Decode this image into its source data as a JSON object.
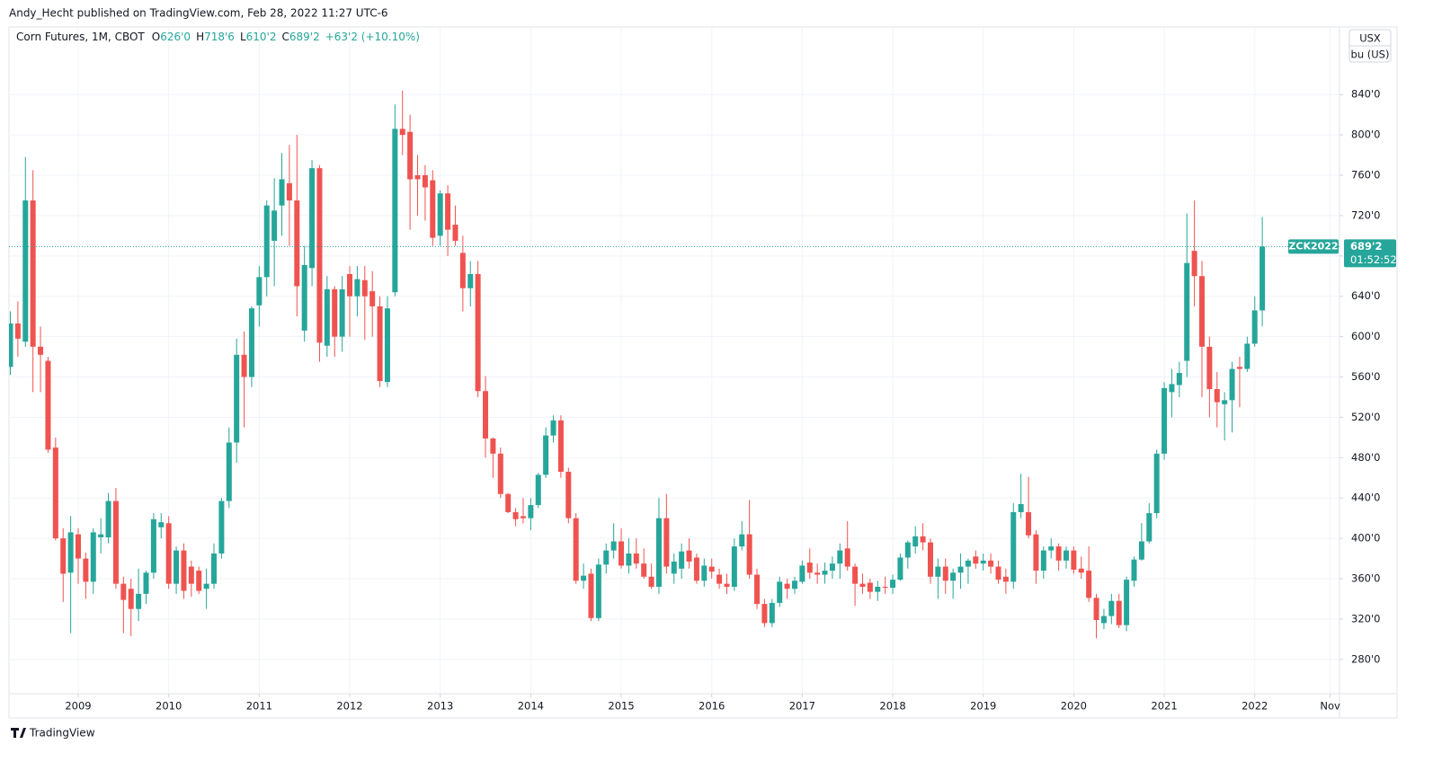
{
  "header": "Andy_Hecht published on TradingView.com, Feb 28, 2022 11:27 UTC-6",
  "footer": "TradingView",
  "chart_data": {
    "type": "candlestick",
    "title": "Corn Futures, 1M, CBOT",
    "ohlc_legend": [
      {
        "label": "O",
        "value": "626'0"
      },
      {
        "label": "H",
        "value": "718'6"
      },
      {
        "label": "L",
        "value": "610'2"
      },
      {
        "label": "C",
        "value": "689'2"
      }
    ],
    "change": "+63'2 (+10.10%)",
    "currency": "USX",
    "unit": "bu (US)",
    "last_price": {
      "value": 689.25,
      "label": "689'2",
      "symbol": "ZCK2022",
      "countdown": "01:52:52"
    },
    "up_color": "#26a69a",
    "down_color": "#ef5350",
    "grid": true,
    "xlim": [
      "2008-04",
      "2022-12"
    ],
    "ylim": [
      246,
      907
    ],
    "xticks": [
      {
        "value": "2009-01",
        "label": "2009"
      },
      {
        "value": "2010-01",
        "label": "2010"
      },
      {
        "value": "2011-01",
        "label": "2011"
      },
      {
        "value": "2012-01",
        "label": "2012"
      },
      {
        "value": "2013-01",
        "label": "2013"
      },
      {
        "value": "2014-01",
        "label": "2014"
      },
      {
        "value": "2015-01",
        "label": "2015"
      },
      {
        "value": "2016-01",
        "label": "2016"
      },
      {
        "value": "2017-01",
        "label": "2017"
      },
      {
        "value": "2018-01",
        "label": "2018"
      },
      {
        "value": "2019-01",
        "label": "2019"
      },
      {
        "value": "2020-01",
        "label": "2020"
      },
      {
        "value": "2021-01",
        "label": "2021"
      },
      {
        "value": "2022-01",
        "label": "2022"
      },
      {
        "value": "2022-11",
        "label": "Nov"
      }
    ],
    "yticks": [
      {
        "value": 280,
        "label": "280'0"
      },
      {
        "value": 320,
        "label": "320'0"
      },
      {
        "value": 360,
        "label": "360'0"
      },
      {
        "value": 400,
        "label": "400'0"
      },
      {
        "value": 440,
        "label": "440'0"
      },
      {
        "value": 480,
        "label": "480'0"
      },
      {
        "value": 520,
        "label": "520'0"
      },
      {
        "value": 560,
        "label": "560'0"
      },
      {
        "value": 600,
        "label": "600'0"
      },
      {
        "value": 640,
        "label": "640'0"
      },
      {
        "value": 680,
        "label": "680'0"
      },
      {
        "value": 720,
        "label": "720'0"
      },
      {
        "value": 760,
        "label": "760'0"
      },
      {
        "value": 800,
        "label": "800'0"
      },
      {
        "value": 840,
        "label": "840'0"
      }
    ],
    "x": [
      "2008-04",
      "2008-05",
      "2008-06",
      "2008-07",
      "2008-08",
      "2008-09",
      "2008-10",
      "2008-11",
      "2008-12",
      "2009-01",
      "2009-02",
      "2009-03",
      "2009-04",
      "2009-05",
      "2009-06",
      "2009-07",
      "2009-08",
      "2009-09",
      "2009-10",
      "2009-11",
      "2009-12",
      "2010-01",
      "2010-02",
      "2010-03",
      "2010-04",
      "2010-05",
      "2010-06",
      "2010-07",
      "2010-08",
      "2010-09",
      "2010-10",
      "2010-11",
      "2010-12",
      "2011-01",
      "2011-02",
      "2011-03",
      "2011-04",
      "2011-05",
      "2011-06",
      "2011-07",
      "2011-08",
      "2011-09",
      "2011-10",
      "2011-11",
      "2011-12",
      "2012-01",
      "2012-02",
      "2012-03",
      "2012-04",
      "2012-05",
      "2012-06",
      "2012-07",
      "2012-08",
      "2012-09",
      "2012-10",
      "2012-11",
      "2012-12",
      "2013-01",
      "2013-02",
      "2013-03",
      "2013-04",
      "2013-05",
      "2013-06",
      "2013-07",
      "2013-08",
      "2013-09",
      "2013-10",
      "2013-11",
      "2013-12",
      "2014-01",
      "2014-02",
      "2014-03",
      "2014-04",
      "2014-05",
      "2014-06",
      "2014-07",
      "2014-08",
      "2014-09",
      "2014-10",
      "2014-11",
      "2014-12",
      "2015-01",
      "2015-02",
      "2015-03",
      "2015-04",
      "2015-05",
      "2015-06",
      "2015-07",
      "2015-08",
      "2015-09",
      "2015-10",
      "2015-11",
      "2015-12",
      "2016-01",
      "2016-02",
      "2016-03",
      "2016-04",
      "2016-05",
      "2016-06",
      "2016-07",
      "2016-08",
      "2016-09",
      "2016-10",
      "2016-11",
      "2016-12",
      "2017-01",
      "2017-02",
      "2017-03",
      "2017-04",
      "2017-05",
      "2017-06",
      "2017-07",
      "2017-08",
      "2017-09",
      "2017-10",
      "2017-11",
      "2017-12",
      "2018-01",
      "2018-02",
      "2018-03",
      "2018-04",
      "2018-05",
      "2018-06",
      "2018-07",
      "2018-08",
      "2018-09",
      "2018-10",
      "2018-11",
      "2018-12",
      "2019-01",
      "2019-02",
      "2019-03",
      "2019-04",
      "2019-05",
      "2019-06",
      "2019-07",
      "2019-08",
      "2019-09",
      "2019-10",
      "2019-11",
      "2019-12",
      "2020-01",
      "2020-02",
      "2020-03",
      "2020-04",
      "2020-05",
      "2020-06",
      "2020-07",
      "2020-08",
      "2020-09",
      "2020-10",
      "2020-11",
      "2020-12",
      "2021-01",
      "2021-02",
      "2021-03",
      "2021-04",
      "2021-05",
      "2021-06",
      "2021-07",
      "2021-08",
      "2021-09",
      "2021-10",
      "2021-11",
      "2021-12",
      "2022-01",
      "2022-02"
    ],
    "open": [
      570,
      613,
      595,
      735,
      590,
      576,
      490,
      400,
      366,
      404,
      380,
      357,
      401,
      401,
      437,
      355,
      350,
      330,
      345,
      366,
      411,
      415,
      355,
      388,
      372,
      368,
      350,
      355,
      385,
      437,
      495,
      582,
      560,
      631,
      659,
      695,
      730,
      752,
      735,
      606,
      668,
      767,
      591,
      647,
      600,
      662,
      640,
      656,
      645,
      630,
      555,
      644,
      806,
      803,
      760,
      760,
      755,
      700,
      742,
      711,
      683,
      648,
      662,
      546,
      499,
      484,
      444,
      426,
      422,
      420,
      433,
      463,
      502,
      517,
      466,
      420,
      358,
      365,
      321,
      374,
      388,
      397,
      373,
      385,
      375,
      362,
      352,
      420,
      365,
      370,
      388,
      381,
      358,
      372,
      364,
      355,
      352,
      392,
      404,
      364,
      335,
      316,
      336,
      355,
      350,
      357,
      376,
      366,
      364,
      368,
      375,
      390,
      372,
      355,
      356,
      347,
      352,
      351,
      359,
      381,
      392,
      402,
      396,
      362,
      372,
      358,
      366,
      372,
      382,
      375,
      378,
      372,
      362,
      357,
      426,
      426,
      404,
      368,
      388,
      392,
      378,
      388,
      370,
      368,
      341,
      316,
      323,
      338,
      314,
      358,
      379,
      397,
      425,
      484,
      545,
      552,
      576,
      685,
      660,
      590,
      548,
      533,
      537,
      570,
      568,
      593,
      626
    ],
    "high": [
      625,
      635,
      778,
      765,
      610,
      580,
      500,
      410,
      422,
      410,
      386,
      410,
      420,
      445,
      450,
      362,
      360,
      370,
      368,
      425,
      425,
      422,
      392,
      395,
      378,
      372,
      370,
      395,
      440,
      510,
      598,
      605,
      630,
      670,
      735,
      757,
      782,
      790,
      800,
      690,
      775,
      770,
      660,
      650,
      660,
      670,
      670,
      670,
      665,
      640,
      640,
      830,
      844,
      820,
      780,
      770,
      765,
      745,
      750,
      730,
      700,
      675,
      675,
      561,
      500,
      490,
      445,
      430,
      440,
      440,
      465,
      510,
      522,
      522,
      470,
      425,
      375,
      370,
      380,
      395,
      415,
      410,
      400,
      400,
      390,
      375,
      440,
      444,
      385,
      395,
      400,
      385,
      380,
      380,
      370,
      365,
      400,
      417,
      438,
      370,
      340,
      340,
      362,
      360,
      362,
      378,
      390,
      375,
      376,
      382,
      395,
      417,
      375,
      365,
      360,
      358,
      362,
      364,
      385,
      398,
      412,
      415,
      400,
      380,
      380,
      370,
      385,
      380,
      388,
      385,
      385,
      378,
      370,
      435,
      464,
      461,
      408,
      392,
      400,
      395,
      392,
      392,
      382,
      392,
      345,
      330,
      345,
      345,
      362,
      382,
      415,
      435,
      488,
      555,
      568,
      575,
      722,
      735,
      675,
      600,
      565,
      545,
      575,
      580,
      600,
      640,
      718.75
    ],
    "low": [
      562,
      580,
      590,
      545,
      545,
      485,
      398,
      337,
      306,
      355,
      340,
      345,
      385,
      395,
      350,
      306,
      303,
      318,
      335,
      360,
      400,
      350,
      345,
      340,
      342,
      345,
      330,
      350,
      380,
      430,
      475,
      510,
      550,
      610,
      640,
      650,
      700,
      690,
      620,
      595,
      650,
      575,
      580,
      580,
      585,
      600,
      620,
      597,
      600,
      550,
      550,
      640,
      780,
      706,
      720,
      715,
      690,
      690,
      680,
      690,
      625,
      630,
      540,
      480,
      460,
      440,
      425,
      412,
      415,
      408,
      430,
      460,
      495,
      460,
      415,
      355,
      350,
      318,
      318,
      365,
      380,
      370,
      365,
      370,
      360,
      350,
      345,
      365,
      355,
      360,
      370,
      355,
      352,
      360,
      350,
      345,
      348,
      388,
      360,
      330,
      312,
      312,
      332,
      340,
      345,
      355,
      360,
      355,
      355,
      360,
      360,
      368,
      333,
      345,
      340,
      338,
      345,
      345,
      358,
      370,
      385,
      388,
      355,
      340,
      345,
      340,
      350,
      355,
      370,
      368,
      365,
      355,
      345,
      350,
      420,
      400,
      355,
      360,
      380,
      368,
      370,
      365,
      360,
      337,
      301,
      310,
      315,
      311,
      308,
      352,
      378,
      395,
      420,
      478,
      520,
      540,
      560,
      630,
      540,
      520,
      510,
      497,
      505,
      530,
      565,
      590,
      610.25
    ],
    "close": [
      613,
      598,
      735,
      590,
      582,
      488,
      400,
      365,
      406,
      380,
      357,
      406,
      404,
      437,
      355,
      339,
      330,
      345,
      366,
      419,
      416,
      355,
      388,
      348,
      355,
      348,
      355,
      385,
      437,
      495,
      582,
      560,
      628,
      659,
      730,
      725,
      756,
      735,
      650,
      671,
      767,
      594,
      647,
      600,
      647,
      640,
      657,
      640,
      630,
      556,
      628,
      806,
      800,
      756,
      756,
      748,
      698,
      742,
      706,
      695,
      648,
      662,
      546,
      499,
      484,
      444,
      426,
      419,
      420,
      433,
      463,
      502,
      517,
      466,
      420,
      358,
      363,
      321,
      374,
      388,
      397,
      373,
      385,
      375,
      362,
      352,
      420,
      372,
      377,
      387,
      377,
      358,
      373,
      367,
      355,
      352,
      392,
      404,
      364,
      335,
      316,
      336,
      357,
      350,
      358,
      373,
      366,
      364,
      368,
      375,
      388,
      372,
      355,
      352,
      347,
      352,
      351,
      359,
      381,
      396,
      402,
      396,
      362,
      372,
      358,
      366,
      372,
      378,
      375,
      378,
      372,
      359,
      357,
      426,
      434,
      403,
      368,
      388,
      392,
      378,
      388,
      369,
      366,
      341,
      319,
      323,
      338,
      314,
      359,
      379,
      397,
      425,
      484,
      549,
      553,
      564,
      673,
      660,
      590,
      548,
      535,
      537,
      568,
      568,
      593,
      626,
      689.25
    ]
  }
}
